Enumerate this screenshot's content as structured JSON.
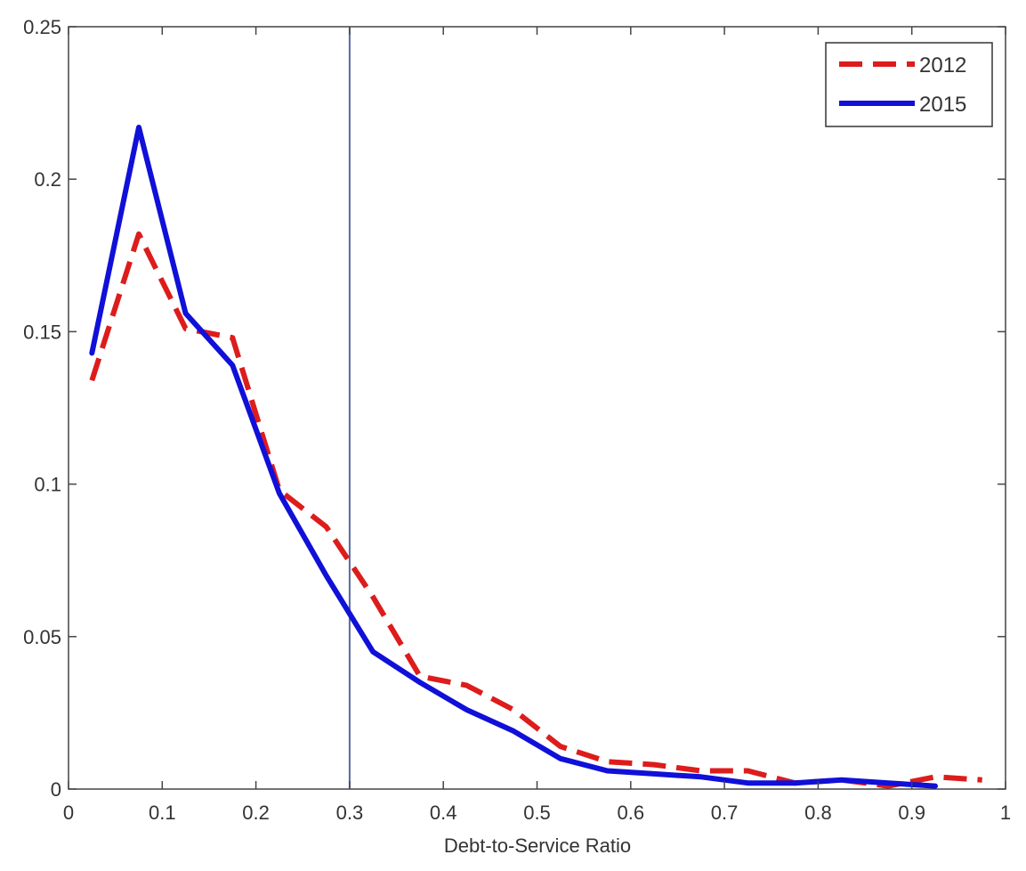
{
  "chart_data": {
    "type": "line",
    "title": "",
    "xlabel": "Debt-to-Service Ratio",
    "ylabel": "",
    "xlim": [
      0,
      1
    ],
    "ylim": [
      0,
      0.25
    ],
    "x_ticks": [
      "0",
      "0.1",
      "0.2",
      "0.3",
      "0.4",
      "0.5",
      "0.6",
      "0.7",
      "0.8",
      "0.9",
      "1"
    ],
    "x_tick_values": [
      0,
      0.1,
      0.2,
      0.3,
      0.4,
      0.5,
      0.6,
      0.7,
      0.8,
      0.9,
      1
    ],
    "y_ticks": [
      "0",
      "0.05",
      "0.1",
      "0.15",
      "0.2",
      "0.25"
    ],
    "y_tick_values": [
      0,
      0.05,
      0.1,
      0.15,
      0.2,
      0.25
    ],
    "grid": false,
    "legend_position": "top-right",
    "reference_line": {
      "x": 0.3,
      "color": "#5a6aa0"
    },
    "series": [
      {
        "name": "2012",
        "color": "#dd1c1c",
        "style": "dashed",
        "x": [
          0.025,
          0.075,
          0.125,
          0.175,
          0.225,
          0.275,
          0.325,
          0.375,
          0.425,
          0.475,
          0.525,
          0.575,
          0.625,
          0.675,
          0.725,
          0.775,
          0.825,
          0.875,
          0.925,
          0.975
        ],
        "values": [
          0.134,
          0.182,
          0.151,
          0.148,
          0.098,
          0.086,
          0.063,
          0.037,
          0.034,
          0.026,
          0.014,
          0.009,
          0.008,
          0.006,
          0.006,
          0.002,
          0.003,
          0.001,
          0.004,
          0.003
        ]
      },
      {
        "name": "2015",
        "color": "#1010d8",
        "style": "solid",
        "x": [
          0.025,
          0.075,
          0.125,
          0.175,
          0.225,
          0.275,
          0.325,
          0.375,
          0.425,
          0.475,
          0.525,
          0.575,
          0.625,
          0.675,
          0.725,
          0.775,
          0.825,
          0.875,
          0.925
        ],
        "values": [
          0.143,
          0.217,
          0.156,
          0.139,
          0.097,
          0.07,
          0.045,
          0.035,
          0.026,
          0.019,
          0.01,
          0.006,
          0.005,
          0.004,
          0.002,
          0.002,
          0.003,
          0.002,
          0.001
        ]
      }
    ]
  }
}
